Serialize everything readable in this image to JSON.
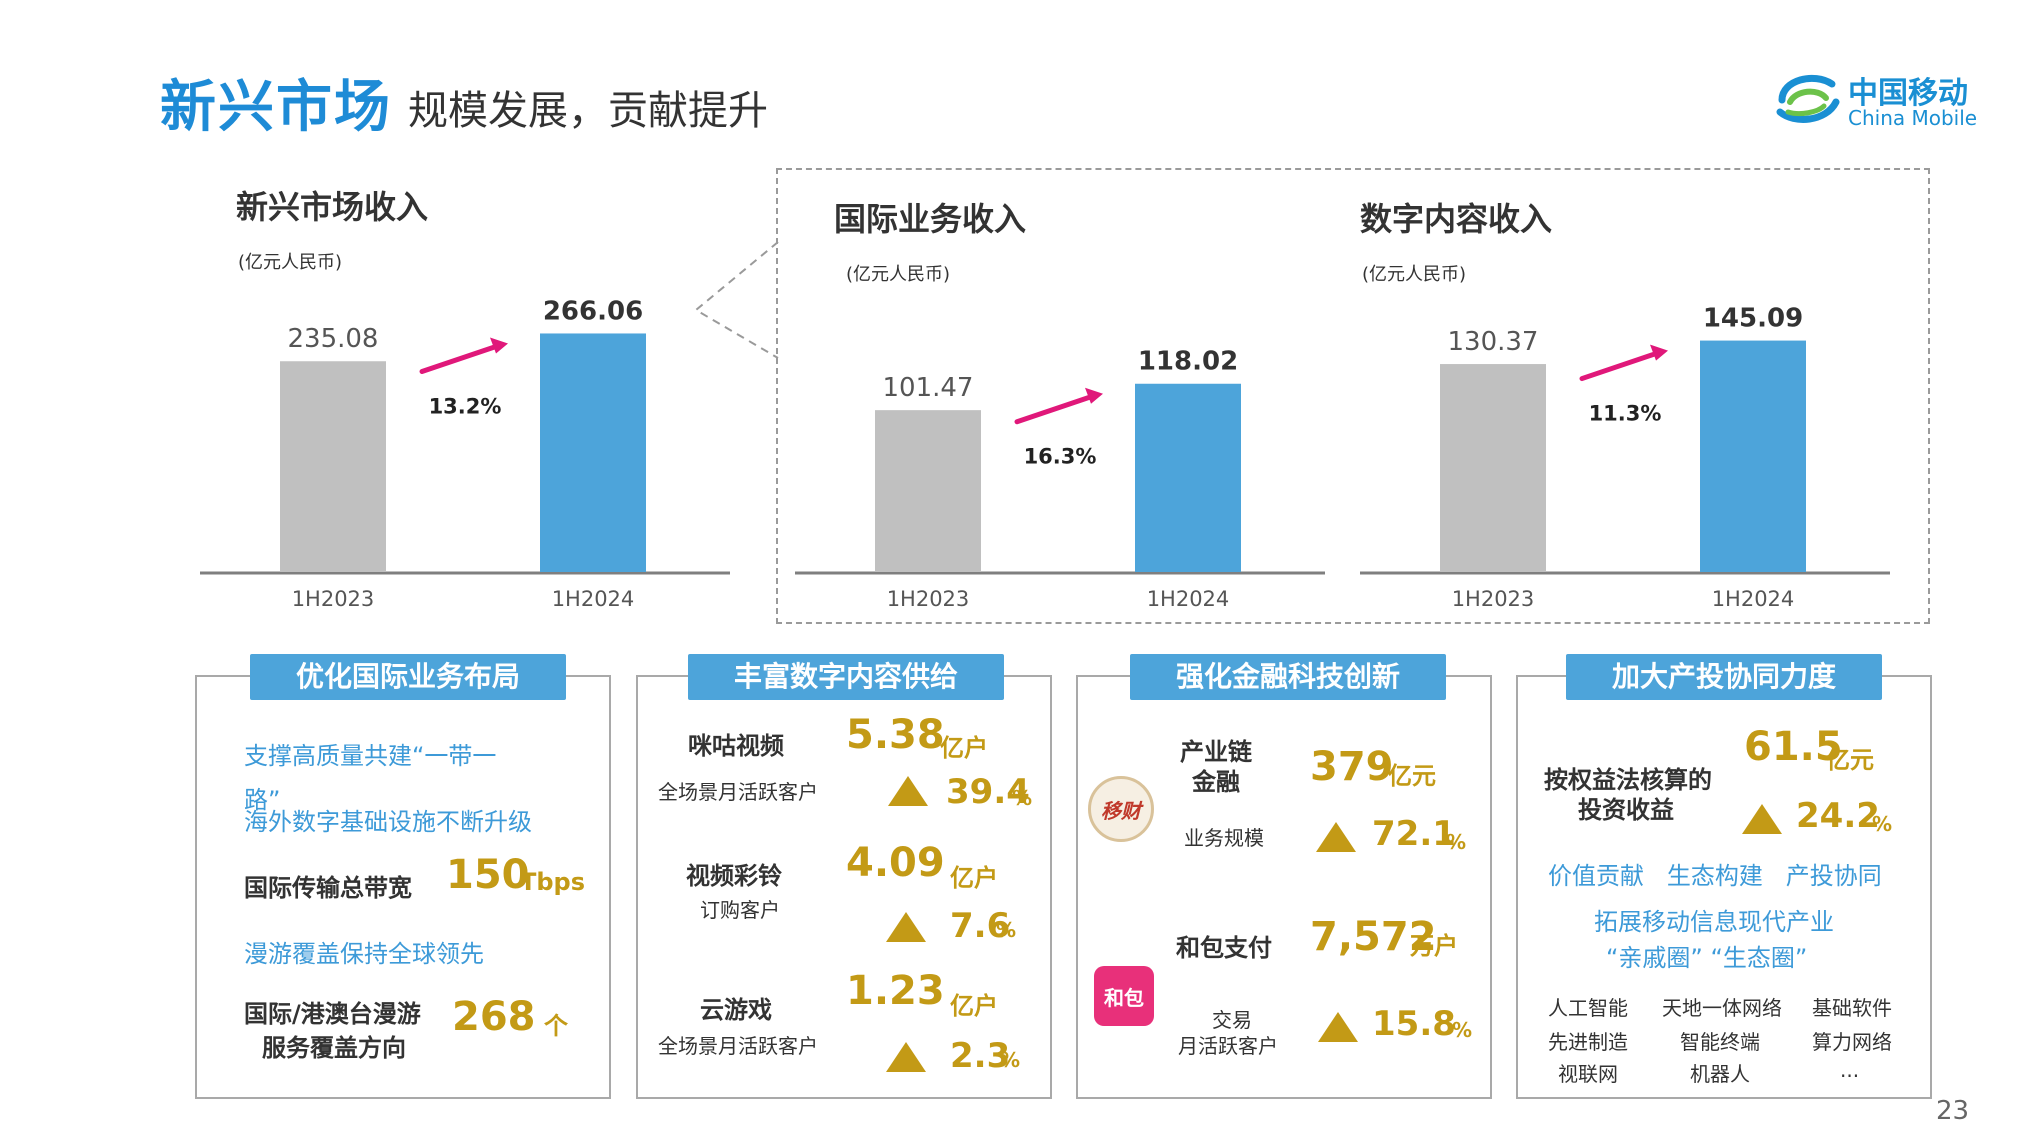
{
  "header": {
    "title_main": "新兴市场",
    "title_sub": "规模发展，贡献提升",
    "logo_cn": "中国移动",
    "logo_en": "China Mobile"
  },
  "colors": {
    "prior": "#c0c0c0",
    "current": "#4da4da",
    "arrow": "#e0187a",
    "gold": "#c39a16",
    "accent_blue": "#1e8bd6"
  },
  "chart_data": [
    {
      "type": "bar",
      "title": "新兴市场收入",
      "unit": "(亿元人民币)",
      "categories": [
        "1H2023",
        "1H2024"
      ],
      "values": [
        235.08,
        266.06
      ],
      "value_labels": [
        "235.08",
        "266.06"
      ],
      "growth": "13.2%",
      "ylim": [
        0,
        290
      ]
    },
    {
      "type": "bar",
      "title": "国际业务收入",
      "unit": "(亿元人民币)",
      "categories": [
        "1H2023",
        "1H2024"
      ],
      "values": [
        101.47,
        118.02
      ],
      "value_labels": [
        "101.47",
        "118.02"
      ],
      "growth": "16.3%",
      "ylim": [
        0,
        163
      ]
    },
    {
      "type": "bar",
      "title": "数字内容收入",
      "unit": "(亿元人民币)",
      "categories": [
        "1H2023",
        "1H2024"
      ],
      "values": [
        130.37,
        145.09
      ],
      "value_labels": [
        "130.37",
        "145.09"
      ],
      "growth": "11.3%",
      "ylim": [
        0,
        163
      ]
    }
  ],
  "cards": {
    "intl": {
      "heading": "优化国际业务布局",
      "line1a": "支撑高质量共建“一带一",
      "line1b": "路”",
      "line2": "海外数字基础设施不断升级",
      "bw_label": "国际传输总带宽",
      "bw_value": "150",
      "bw_unit": "Tbps",
      "roam": "漫游覆盖保持全球领先",
      "dir_label_1": "国际/港澳台漫游",
      "dir_label_2": "服务覆盖方向",
      "dir_value": "268",
      "dir_unit": "个"
    },
    "content": {
      "heading": "丰富数字内容供给",
      "items": [
        {
          "name": "咪咕视频",
          "sub": "全场景月活跃客户",
          "value": "5.38",
          "unit": "亿户",
          "growth": "39.4",
          "pct": "%"
        },
        {
          "name": "视频彩铃",
          "sub": "订购客户",
          "value": "4.09",
          "unit": "亿户",
          "growth": "7.6",
          "pct": "%"
        },
        {
          "name": "云游戏",
          "sub": "全场景月活跃客户",
          "value": "1.23",
          "unit": "亿户",
          "growth": "2.3",
          "pct": "%"
        }
      ]
    },
    "fintech": {
      "heading": "强化金融科技创新",
      "icon1_text": "移财",
      "name1_a": "产业链",
      "name1_b": "金融",
      "sub1": "业务规模",
      "value1": "379",
      "unit1": "亿元",
      "growth1": "72.1",
      "icon2_text": "和包",
      "name2": "和包支付",
      "sub2_a": "交易",
      "sub2_b": "月活跃客户",
      "value2": "7,572",
      "unit2": "万户",
      "growth2": "15.8",
      "pct": "%"
    },
    "invest": {
      "heading": "加大产投协同力度",
      "label_a": "按权益法核算的",
      "label_b": "投资收益",
      "value": "61.5",
      "unit": "亿元",
      "growth": "24.2",
      "pct": "%",
      "keywords": "价值贡献   生态构建   产投协同",
      "expand_a": "拓展移动信息现代产业",
      "expand_b": "“亲戚圈” “生态圈”",
      "tags": [
        "人工智能",
        "天地一体网络",
        "基础软件",
        "先进制造",
        "智能终端",
        "算力网络",
        "视联网",
        "机器人",
        "..."
      ]
    }
  },
  "page_number": "23"
}
